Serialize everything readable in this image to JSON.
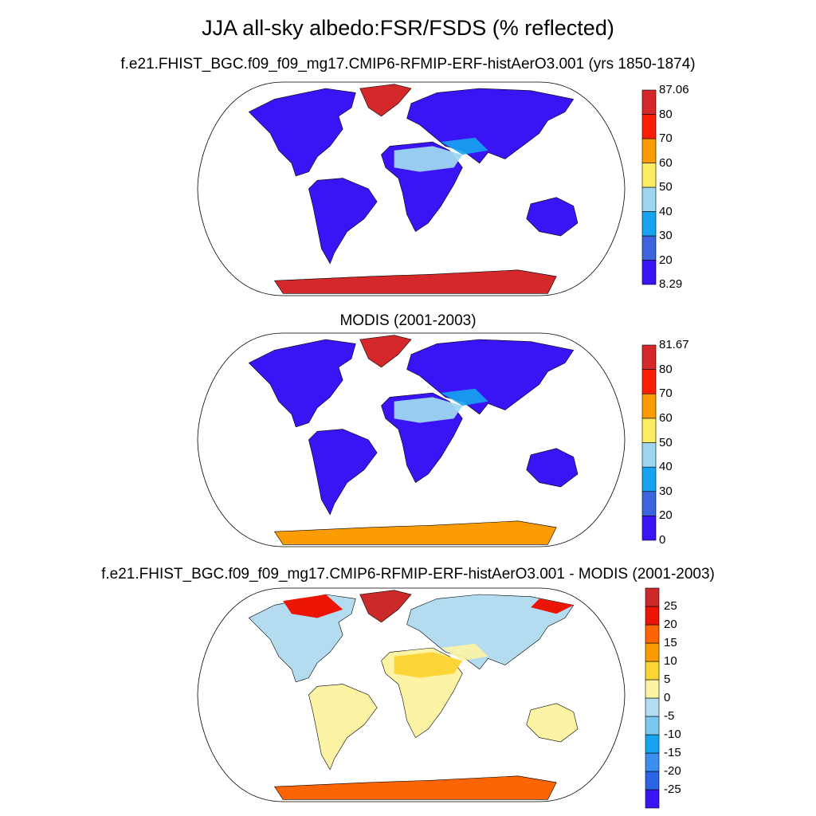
{
  "title": "JJA all-sky albedo:FSR/FSDS (% reflected)",
  "panels": [
    {
      "id": "model",
      "subtitle": "f.e21.FHIST_BGC.f09_f09_mg17.CMIP6-RFMIP-ERF-histAerO3.001 (yrs 1850-1874)",
      "colorbar": {
        "colors": [
          "#3a14f5",
          "#3c64dc",
          "#16a4f0",
          "#9ed6f0",
          "#fcec64",
          "#fc9c04",
          "#fc1e04",
          "#d4282a"
        ],
        "labels": [
          "8.29",
          "20",
          "30",
          "40",
          "50",
          "60",
          "70",
          "80",
          "87.06"
        ]
      }
    },
    {
      "id": "obs",
      "subtitle": "MODIS (2001-2003)",
      "colorbar": {
        "colors": [
          "#3a14f5",
          "#3c64dc",
          "#16a4f0",
          "#9ed6f0",
          "#fcec64",
          "#fc9c04",
          "#fc1e04",
          "#d4282a"
        ],
        "labels": [
          "0",
          "20",
          "30",
          "40",
          "50",
          "60",
          "70",
          "80",
          "81.67"
        ]
      }
    },
    {
      "id": "diff",
      "subtitle": "f.e21.FHIST_BGC.f09_f09_mg17.CMIP6-RFMIP-ERF-histAerO3.001 - MODIS (2001-2003)",
      "colorbar": {
        "colors": [
          "#3a14f5",
          "#2c64e6",
          "#3c8ef0",
          "#16a4f0",
          "#7cc8f0",
          "#b4dcf0",
          "#fcf4a4",
          "#fcd434",
          "#fc9c04",
          "#fc6404",
          "#ec1404",
          "#cc2a2a"
        ],
        "labels": [
          "-25",
          "-20",
          "-15",
          "-10",
          "-5",
          "0",
          "5",
          "10",
          "15",
          "20",
          "25"
        ]
      }
    }
  ]
}
